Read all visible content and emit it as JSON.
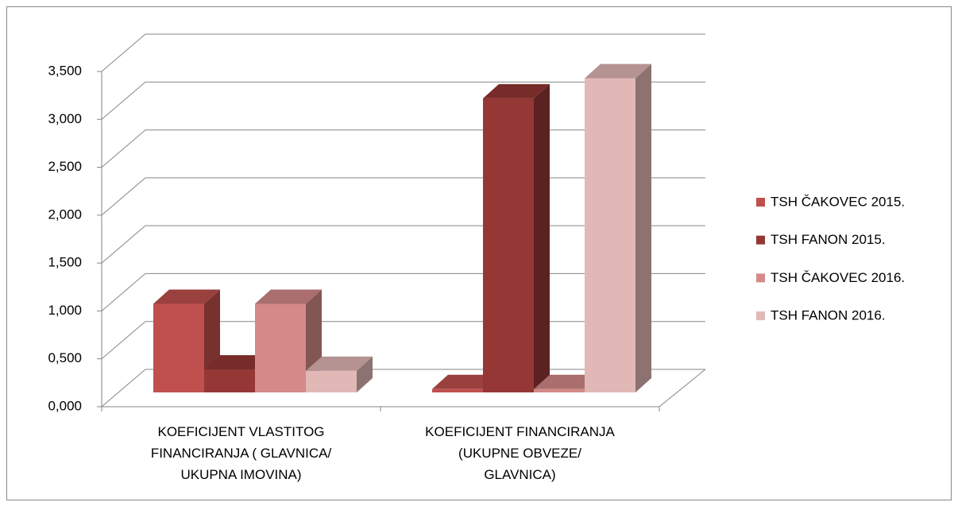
{
  "chart_data": {
    "type": "bar3d",
    "categories": [
      "KOEFICIJENT VLASTITOG FINANCIRANJA ( GLAVNICA/ UKUPNA IMOVINA)",
      "KOEFICIJENT FINANCIRANJA (UKUPNE OBVEZE/ GLAVNICA)"
    ],
    "series": [
      {
        "name": "TSH ČAKOVEC 2015.",
        "color": "#c0504d",
        "values": [
          0.925,
          0.035
        ]
      },
      {
        "name": "TSH FANON 2015.",
        "color": "#953735",
        "values": [
          0.24,
          3.07
        ]
      },
      {
        "name": "TSH ČAKOVEC 2016.",
        "color": "#d38a88",
        "values": [
          0.925,
          0.035
        ]
      },
      {
        "name": "TSH FANON 2016.",
        "color": "#e2b8b7",
        "values": [
          0.225,
          3.28
        ]
      }
    ],
    "ylim": [
      0,
      3.5
    ],
    "yticks": [
      {
        "value": 0,
        "label": "0,000"
      },
      {
        "value": 0.5,
        "label": "0,500"
      },
      {
        "value": 1,
        "label": "1,000"
      },
      {
        "value": 1.5,
        "label": "1,500"
      },
      {
        "value": 2,
        "label": "2,000"
      },
      {
        "value": 2.5,
        "label": "2,500"
      },
      {
        "value": 3,
        "label": "3,000"
      },
      {
        "value": 3.5,
        "label": "3,500"
      }
    ],
    "grid": true,
    "legend": "right"
  }
}
